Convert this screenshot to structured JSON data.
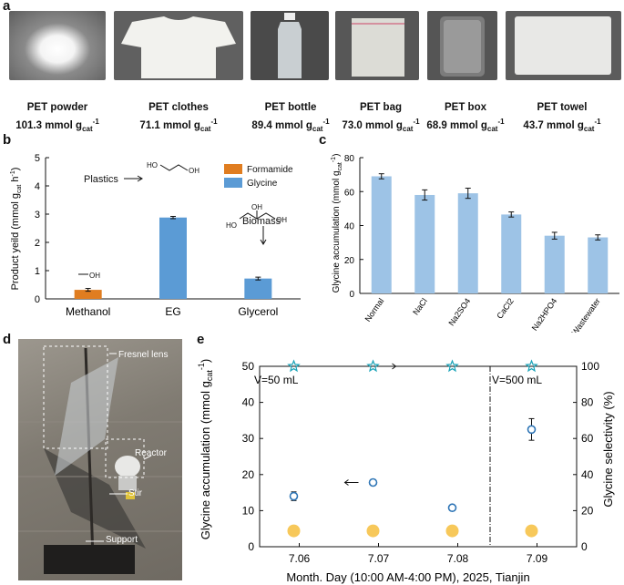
{
  "panel_a": {
    "letter": "a",
    "items": [
      {
        "name": "PET powder",
        "value": "101.3 mmol g"
      },
      {
        "name": "PET clothes",
        "value": "71.1 mmol g"
      },
      {
        "name": "PET  bottle",
        "value": "89.4 mmol g"
      },
      {
        "name": "PET bag",
        "value": "73.0 mmol g"
      },
      {
        "name": "PET box",
        "value": "68.9 mmol g"
      },
      {
        "name": "PET  towel",
        "value": "43.7 mmol g"
      }
    ],
    "unit_sub": "cat",
    "unit_sup": "-1"
  },
  "chart_data": [
    {
      "id": "b",
      "type": "bar",
      "letter": "b",
      "categories": [
        "Methanol",
        "EG",
        "Glycerol"
      ],
      "series": [
        {
          "name": "Formamide",
          "color": "#e07d20",
          "values": [
            0.32,
            null,
            null
          ],
          "errors": [
            0.05,
            null,
            null
          ]
        },
        {
          "name": "Glycine",
          "color": "#5b9bd5",
          "values": [
            null,
            2.88,
            0.72
          ],
          "errors": [
            null,
            0.04,
            0.05
          ]
        }
      ],
      "ylabel": "Product yeild (mmol g",
      "ylabel_sub": "cat",
      "ylabel_tail": " h",
      "ylabel_sup": "-1",
      "ylabel_sup2": "-1",
      "ylabel_end": ")",
      "ylim": [
        0,
        5
      ],
      "yticks": [
        "0",
        "1",
        "2",
        "3",
        "4",
        "5"
      ],
      "annotations": {
        "plastics": "Plastics",
        "biomass": "Biomass",
        "oh": "OH",
        "ho": "HO"
      },
      "legend": "top-right"
    },
    {
      "id": "c",
      "type": "bar",
      "letter": "c",
      "categories": [
        "Normal",
        "NaCl",
        "Na2SO4",
        "CaCl2",
        "Na2HPO4",
        "Wastewater"
      ],
      "values": [
        69,
        58,
        59,
        46.5,
        34,
        33
      ],
      "errors": [
        1.5,
        3,
        3,
        1.5,
        2,
        1.5
      ],
      "color": "#9dc3e6",
      "ylabel": "Glycine accumulation (mmol g",
      "ylabel_sub": "cat",
      "ylabel_sup": "-1",
      "ylabel_end": ")",
      "ylim": [
        0,
        80
      ],
      "yticks": [
        "0",
        "20",
        "40",
        "60",
        "80"
      ]
    },
    {
      "id": "e",
      "type": "scatter",
      "letter": "e",
      "categories": [
        "7.06",
        "7.07",
        "7.08",
        "7.09"
      ],
      "series": [
        {
          "name": "Glycine accumulation",
          "values": [
            14,
            17.8,
            10.8,
            32.5
          ],
          "errors": [
            1.2,
            0.8,
            0.8,
            3
          ]
        },
        {
          "name": "Glycine selectivity",
          "values": [
            100,
            100,
            100,
            100
          ]
        }
      ],
      "xlabel": "Month. Day (10:00 AM-4:00 PM), 2025, Tianjin",
      "ylabel_left": "Glycine accumulation (mmol g",
      "ylabel_left_sub": "cat",
      "ylabel_left_sup": "-1",
      "ylabel_left_end": ")",
      "ylabel_right": "Glycine selectivity (%)",
      "ylim_left": [
        0,
        50
      ],
      "ylim_right": [
        0,
        100
      ],
      "yticks_left": [
        "0",
        "10",
        "20",
        "30",
        "40",
        "50"
      ],
      "yticks_right": [
        "0",
        "20",
        "40",
        "60",
        "80",
        "100"
      ],
      "annotations": {
        "v50": "V=50 mL",
        "v500": "V=500 mL"
      }
    }
  ],
  "panel_d": {
    "letter": "d",
    "labels": {
      "lens": "Fresnel lens",
      "reactor": "Reactor",
      "stir": "Stir",
      "support": "Support"
    }
  }
}
